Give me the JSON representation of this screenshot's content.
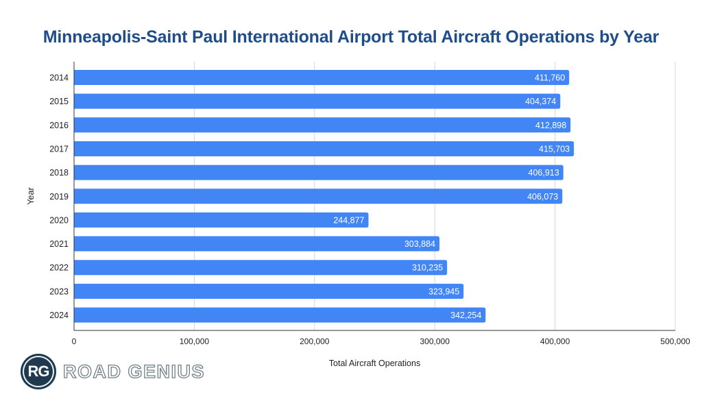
{
  "chart_data": {
    "type": "bar",
    "orientation": "horizontal",
    "title": "Minneapolis-Saint Paul International Airport Total Aircraft Operations by Year",
    "xlabel": "Total Aircraft Operations",
    "ylabel": "Year",
    "categories": [
      "2014",
      "2015",
      "2016",
      "2017",
      "2018",
      "2019",
      "2020",
      "2021",
      "2022",
      "2023",
      "2024"
    ],
    "values": [
      411760,
      404374,
      412898,
      415703,
      406913,
      406073,
      244877,
      303884,
      310235,
      323945,
      342254
    ],
    "data_labels": [
      "411,760",
      "404,374",
      "412,898",
      "415,703",
      "406,913",
      "406,073",
      "244,877",
      "303,884",
      "310,235",
      "323,945",
      "342,254"
    ],
    "xlim": [
      0,
      500000
    ],
    "xticks": [
      0,
      100000,
      200000,
      300000,
      400000,
      500000
    ],
    "xtick_labels": [
      "0",
      "100,000",
      "200,000",
      "300,000",
      "400,000",
      "500,000"
    ],
    "grid": true,
    "bar_color": "#4285f4",
    "title_color": "#1f4d8a"
  },
  "logo": {
    "initials": "RG",
    "text": "ROAD GENIUS"
  }
}
